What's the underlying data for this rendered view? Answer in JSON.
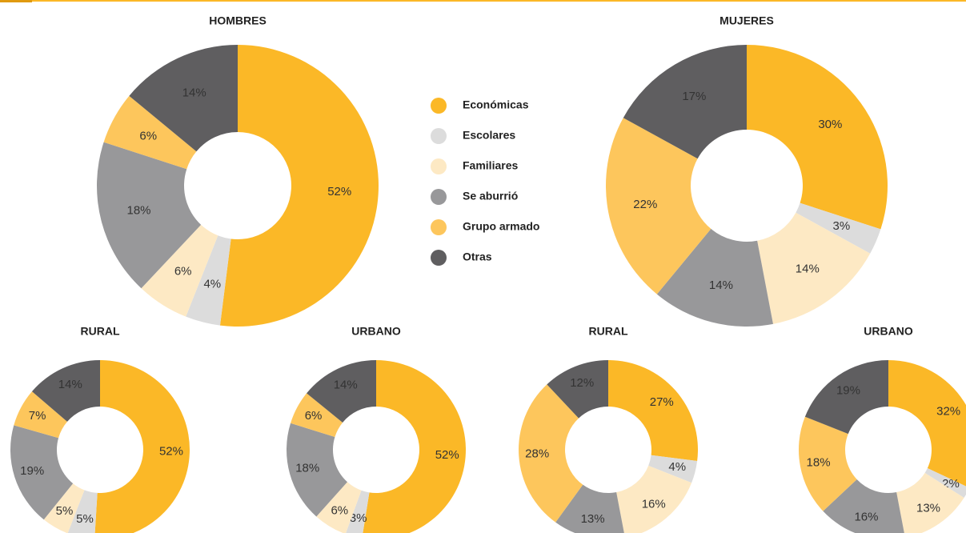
{
  "legend": {
    "labels": [
      "Económicas",
      "Escolares",
      "Familiares",
      "Se aburrió",
      "Grupo armado",
      "Otras"
    ],
    "colors": [
      "#fbb827",
      "#dcdcdc",
      "#fde9c4",
      "#98989a",
      "#fdc65c",
      "#5f5e60"
    ]
  },
  "chart_data": [
    {
      "type": "pie",
      "title": "HOMBRES",
      "values": [
        52,
        4,
        6,
        18,
        6,
        14
      ],
      "value_labels": [
        "52%",
        "4%",
        "6%",
        "18%",
        "6%",
        "14%"
      ]
    },
    {
      "type": "pie",
      "title": "MUJERES",
      "values": [
        30,
        3,
        14,
        14,
        22,
        17
      ],
      "value_labels": [
        "30%",
        "3%",
        "14%",
        "14%",
        "22%",
        "17%"
      ]
    },
    {
      "type": "pie",
      "title": "RURAL",
      "values": [
        52,
        5,
        5,
        19,
        7,
        14
      ],
      "value_labels": [
        "52%",
        "5%",
        "5%",
        "19%",
        "7%",
        "14%"
      ]
    },
    {
      "type": "pie",
      "title": "URBANO",
      "values": [
        52,
        3,
        6,
        18,
        6,
        14
      ],
      "value_labels": [
        "52%",
        "3%",
        "6%",
        "18%",
        "6%",
        "14%"
      ]
    },
    {
      "type": "pie",
      "title": "RURAL",
      "values": [
        27,
        4,
        16,
        13,
        28,
        12
      ],
      "value_labels": [
        "27%",
        "4%",
        "16%",
        "13%",
        "28%",
        "12%"
      ]
    },
    {
      "type": "pie",
      "title": "URBANO",
      "values": [
        32,
        2,
        13,
        16,
        18,
        19
      ],
      "value_labels": [
        "32%",
        "2%",
        "13%",
        "16%",
        "18%",
        "19%"
      ]
    }
  ]
}
